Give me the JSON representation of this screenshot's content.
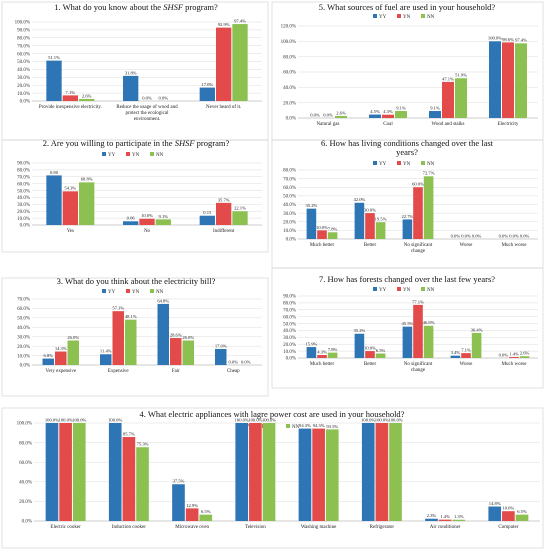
{
  "colors": {
    "YY": "#2e75b6",
    "YN": "#e34a4a",
    "NN": "#8cc152"
  },
  "legend": [
    "YY",
    "YN",
    "NN"
  ],
  "chart_data": [
    {
      "type": "bar",
      "title_parts": [
        "1. What do you know about the ",
        "SHSF",
        " program?"
      ],
      "ylim": [
        0,
        100
      ],
      "ytick_labels": [
        "0.0%",
        "10.0%",
        "20.0%",
        "30.0%",
        "40.0%",
        "50.0%",
        "60.0%",
        "70.0%",
        "80.0%",
        "90.0%",
        "100.0%"
      ],
      "categories": [
        [
          "Provide inexpensive electricity."
        ],
        [
          "Reduce the usage of wood and",
          "protect the ecological",
          "environment."
        ],
        [
          "Never heard of it."
        ]
      ],
      "series": [
        {
          "name": "YY",
          "values": [
            51.1,
            31.8,
            17.0
          ],
          "labels": [
            "51.1%",
            "31.8%",
            "17.0%"
          ]
        },
        {
          "name": "YN",
          "values": [
            7.1,
            0.0,
            92.9
          ],
          "labels": [
            "7.1%",
            "0.0%",
            "92.9%"
          ]
        },
        {
          "name": "NN",
          "values": [
            2.6,
            0.0,
            97.4
          ],
          "labels": [
            "2.6%",
            "0.0%",
            "97.4%"
          ]
        }
      ]
    },
    {
      "type": "bar",
      "title_parts": [
        "2. Are you willing to participate in the ",
        "SHSF",
        " program?"
      ],
      "ylim": [
        0,
        100
      ],
      "ytick_labels": [
        "0.0%",
        "10.0%",
        "20.0%",
        "30.0%",
        "40.0%",
        "50.0%",
        "60.0%",
        "70.0%",
        "80.0%",
        "90.0%"
      ],
      "categories": [
        [
          "Yes"
        ],
        [
          "No"
        ],
        [
          "Indifferent"
        ]
      ],
      "series": [
        {
          "name": "YY",
          "values": [
            80,
            6,
            15
          ],
          "labels": [
            "0.80",
            "0.06",
            "0.15"
          ]
        },
        {
          "name": "YN",
          "values": [
            54.3,
            10.0,
            35.7
          ],
          "labels": [
            "54.3%",
            "10.0%",
            "35.7%"
          ]
        },
        {
          "name": "NN",
          "values": [
            68.8,
            9.1,
            22.1
          ],
          "labels": [
            "68.8%",
            "9.1%",
            "22.1%"
          ]
        }
      ]
    },
    {
      "type": "bar",
      "title": "3. What do you think about the electricity bill?",
      "ylim": [
        0,
        70
      ],
      "ytick_labels": [
        "0.0%",
        "10.0%",
        "20.0%",
        "30.0%",
        "40.0%",
        "50.0%",
        "60.0%",
        "70.0%"
      ],
      "categories": [
        [
          "Very expensive"
        ],
        [
          "Expensive"
        ],
        [
          "Fair"
        ],
        [
          "Cheap"
        ]
      ],
      "series": [
        {
          "name": "YY",
          "values": [
            6.8,
            11.4,
            64.8,
            17.0
          ],
          "labels": [
            "6.8%",
            "11.4%",
            "64.8%",
            "17.0%"
          ]
        },
        {
          "name": "YN",
          "values": [
            14.3,
            57.1,
            28.6,
            0.0
          ],
          "labels": [
            "14.3%",
            "57.1%",
            "28.6%",
            "0.0%"
          ]
        },
        {
          "name": "NN",
          "values": [
            26.0,
            48.1,
            26.0,
            0.0
          ],
          "labels": [
            "26.0%",
            "48.1%",
            "26.0%",
            "0.0%"
          ]
        }
      ]
    },
    {
      "type": "bar",
      "title": "5. What sources of fuel are used in your household?",
      "ylim": [
        0,
        120
      ],
      "ytick_labels": [
        "0.0%",
        "20.0%",
        "40.0%",
        "60.0%",
        "80.0%",
        "100.0%",
        "120.0%"
      ],
      "categories": [
        [
          "Natural gas"
        ],
        [
          "Coal"
        ],
        [
          "Wood and stalks"
        ],
        [
          "Electricity"
        ]
      ],
      "series": [
        {
          "name": "YY",
          "values": [
            0.0,
            4.5,
            9.1,
            100.0
          ],
          "labels": [
            "0.0%",
            "4.5%",
            "9.1%",
            "100.0%"
          ]
        },
        {
          "name": "YN",
          "values": [
            0.0,
            4.3,
            47.1,
            98.6
          ],
          "labels": [
            "0.0%",
            "4.3%",
            "47.1%",
            "98.6%"
          ]
        },
        {
          "name": "NN",
          "values": [
            2.6,
            9.1,
            51.9,
            97.4
          ],
          "labels": [
            "2.6%",
            "9.1%",
            "51.9%",
            "97.4%"
          ]
        }
      ]
    },
    {
      "type": "bar",
      "title_lines": [
        "6. How has living conditions changed over the last",
        "years?"
      ],
      "ylim": [
        0,
        80
      ],
      "ytick_labels": [
        "0.0%",
        "10.0%",
        "20.0%",
        "30.0%",
        "40.0%",
        "50.0%",
        "60.0%",
        "70.0%",
        "80.0%"
      ],
      "categories": [
        [
          "Much better"
        ],
        [
          "Better"
        ],
        [
          "No significant",
          "change"
        ],
        [
          "Worse"
        ],
        [
          "Much worse"
        ]
      ],
      "series": [
        {
          "name": "YY",
          "values": [
            35.2,
            42.0,
            22.7,
            0.0,
            0.0
          ],
          "labels": [
            "35.2%",
            "42.0%",
            "22.7%",
            "0.0%",
            "0.0%"
          ]
        },
        {
          "name": "YN",
          "values": [
            10.0,
            30.0,
            60.0,
            0.0,
            0.0
          ],
          "labels": [
            "10.0%",
            "30.0%",
            "60.0%",
            "0.0%",
            "0.0%"
          ]
        },
        {
          "name": "NN",
          "values": [
            7.8,
            19.5,
            72.7,
            0.0,
            0.0
          ],
          "labels": [
            "7.8%",
            "19.5%",
            "72.7%",
            "0.0%",
            "0.0%"
          ]
        }
      ]
    },
    {
      "type": "bar",
      "title": "7. How has forests changed over the last few years?",
      "ylim": [
        0,
        90
      ],
      "ytick_labels": [
        "0.0%",
        "10.0%",
        "20.0%",
        "30.0%",
        "40.0%",
        "50.0%",
        "60.0%",
        "70.0%",
        "80.0%",
        "90.0%"
      ],
      "categories": [
        [
          "Much better"
        ],
        [
          "Better"
        ],
        [
          "No significant",
          "change"
        ],
        [
          "Worse"
        ],
        [
          "Much worse"
        ]
      ],
      "series": [
        {
          "name": "YY",
          "values": [
            15.9,
            35.2,
            45.5,
            3.4,
            0.0
          ],
          "labels": [
            "15.9%",
            "35.2%",
            "45.5%",
            "3.4%",
            "0.0%"
          ]
        },
        {
          "name": "YN",
          "values": [
            4.3,
            10.0,
            77.1,
            7.1,
            1.4
          ],
          "labels": [
            "4.3%",
            "10.0%",
            "77.1%",
            "7.1%",
            "1.4%"
          ]
        },
        {
          "name": "NN",
          "values": [
            7.8,
            6.5,
            46.8,
            36.4,
            2.6
          ],
          "labels": [
            "7.8%",
            "6.5%",
            "46.8%",
            "36.4%",
            "2.6%"
          ]
        }
      ]
    },
    {
      "type": "bar",
      "title": "4. What electric appliances with lagre power cost are used in your household?",
      "ylim": [
        0,
        100
      ],
      "ytick_labels": [
        "0.0%",
        "20.0%",
        "40.0%",
        "60.0%",
        "80.0%",
        "100.0%"
      ],
      "categories": [
        [
          "Electric cooker"
        ],
        [
          "Induction cooker"
        ],
        [
          "Microwave oven"
        ],
        [
          "Television"
        ],
        [
          "Washing machine"
        ],
        [
          "Refrigerator"
        ],
        [
          "Air conditioner"
        ],
        [
          "Computer"
        ]
      ],
      "series": [
        {
          "name": "YY",
          "values": [
            100.0,
            100.0,
            37.5,
            100.0,
            94.3,
            100.0,
            2.3,
            14.8
          ],
          "labels": [
            "100.0%",
            "100.0%",
            "37.5%",
            "100.0%",
            "94.3%",
            "100.0%",
            "2.3%",
            "14.8%"
          ]
        },
        {
          "name": "YN",
          "values": [
            100.0,
            85.7,
            12.9,
            100.0,
            94.3,
            100.0,
            1.4,
            10.0
          ],
          "labels": [
            "100.0%",
            "85.7%",
            "12.9%",
            "100.0%",
            "94.3%",
            "100.0%",
            "1.4%",
            "10.0%"
          ]
        },
        {
          "name": "NN",
          "values": [
            100.0,
            75.3,
            6.5,
            100.0,
            93.5,
            100.0,
            1.3,
            6.5
          ],
          "labels": [
            "100.0%",
            "75.3%",
            "6.5%",
            "100.0%",
            "93.5%",
            "100.0%",
            "1.3%",
            "6.5%"
          ]
        }
      ]
    }
  ]
}
